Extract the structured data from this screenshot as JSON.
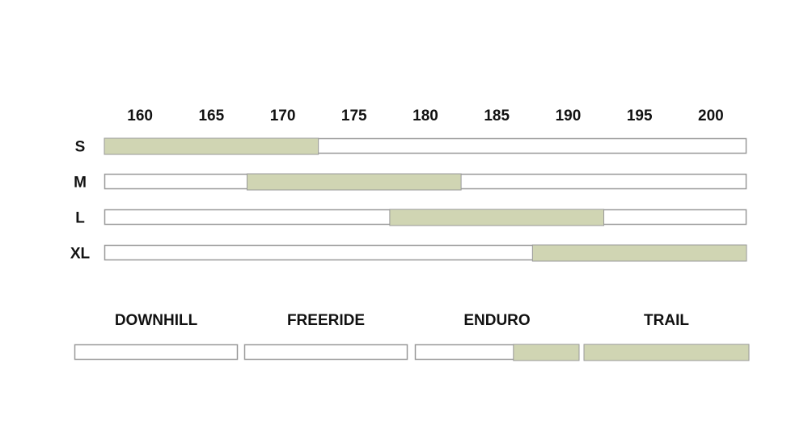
{
  "chart_data": [
    {
      "type": "bar",
      "x_ticks": [
        160,
        165,
        170,
        175,
        180,
        185,
        190,
        195,
        200
      ],
      "xlim": [
        157.5,
        202.5
      ],
      "fill_color": "#d0d5b3",
      "rows": [
        {
          "label": "S",
          "range": [
            157.5,
            172.5
          ]
        },
        {
          "label": "M",
          "range": [
            167.5,
            182.5
          ]
        },
        {
          "label": "L",
          "range": [
            177.5,
            192.5
          ]
        },
        {
          "label": "XL",
          "range": [
            187.5,
            202.5
          ]
        }
      ]
    },
    {
      "type": "bar",
      "fill_color": "#d0d5b3",
      "categories": [
        "DOWNHILL",
        "FREERIDE",
        "ENDURO",
        "TRAIL"
      ],
      "fill_fraction": [
        0,
        0,
        0.4,
        1
      ]
    }
  ]
}
